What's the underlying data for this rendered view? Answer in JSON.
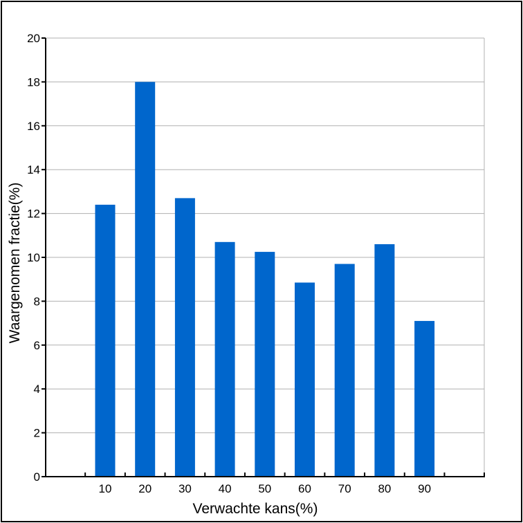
{
  "chart_data": {
    "type": "bar",
    "categories": [
      "10",
      "20",
      "30",
      "40",
      "50",
      "60",
      "70",
      "80",
      "90"
    ],
    "values": [
      12.4,
      18.0,
      12.7,
      10.7,
      10.25,
      8.85,
      9.7,
      10.6,
      7.1
    ],
    "xlabel": "Verwachte kans(%)",
    "ylabel": "Waargenomen fractie(%)",
    "ylim": [
      0,
      20
    ],
    "yticks": [
      "0",
      "2",
      "4",
      "6",
      "8",
      "10",
      "12",
      "14",
      "16",
      "18",
      "20"
    ],
    "grid": "horizontal",
    "bar_color": "#0066cc"
  }
}
